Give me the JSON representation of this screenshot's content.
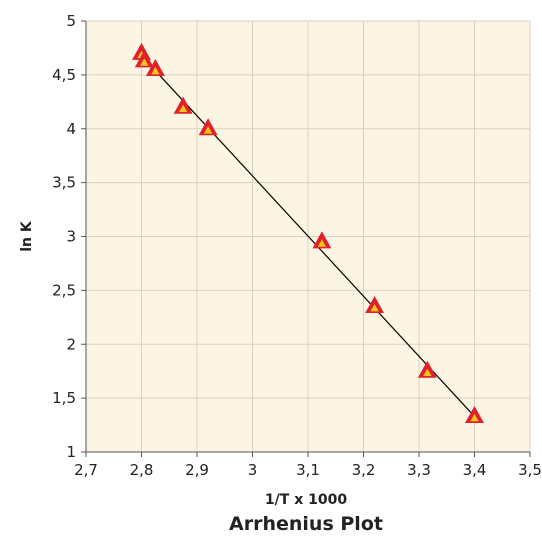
{
  "chart_data": {
    "type": "scatter",
    "title": "Arrhenius Plot",
    "xlabel": "1/T x 1000",
    "ylabel": "ln K",
    "xlim": [
      2.7,
      3.5
    ],
    "ylim": [
      1,
      5
    ],
    "x_ticks": [
      "2,7",
      "2,8",
      "2,9",
      "3",
      "3,1",
      "3,2",
      "3,3",
      "3,4",
      "3,5"
    ],
    "y_ticks": [
      "1",
      "1,5",
      "2",
      "2,5",
      "3",
      "3,5",
      "4",
      "4,5",
      "5"
    ],
    "x_tick_values": [
      2.7,
      2.8,
      2.9,
      3.0,
      3.1,
      3.2,
      3.3,
      3.4,
      3.5
    ],
    "y_tick_values": [
      1,
      1.5,
      2,
      2.5,
      3,
      3.5,
      4,
      4.5,
      5
    ],
    "grid": true,
    "legend": "none",
    "series": [
      {
        "x": [
          2.8,
          2.805,
          2.825,
          2.875,
          2.92,
          3.125,
          3.22,
          3.315,
          3.4
        ],
        "y": [
          4.7,
          4.63,
          4.55,
          4.2,
          4.0,
          2.95,
          2.35,
          1.75,
          1.33
        ]
      }
    ],
    "trendline": {
      "x": [
        2.805,
        3.4
      ],
      "y": [
        4.65,
        1.33
      ]
    },
    "colors": {
      "plot_background": "#fdf5e3",
      "grid": "#d9d2c2",
      "marker_outer": "#e0202a",
      "marker_inner": "#f5c518",
      "line": "#000000"
    }
  }
}
